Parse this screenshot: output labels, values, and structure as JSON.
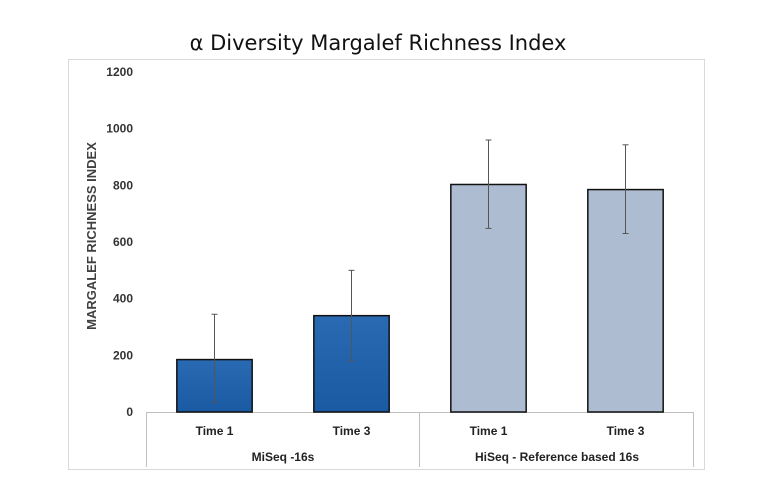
{
  "chart_data": {
    "type": "bar",
    "title": "α Diversity Margalef Richness Index",
    "xlabel": "",
    "ylabel": "MARGALEF RICHNESS INDEX",
    "ylim": [
      0,
      1200
    ],
    "yticks": [
      0,
      200,
      400,
      600,
      800,
      1000,
      1200
    ],
    "grid": false,
    "legend": "none",
    "groups": [
      {
        "name": "MiSeq -16s",
        "color": "#1F5FA8",
        "bars": [
          {
            "category": "Time 1",
            "value": 185,
            "error_low": 35,
            "error_high": 345
          },
          {
            "category": "Time 3",
            "value": 340,
            "error_low": 180,
            "error_high": 500
          }
        ]
      },
      {
        "name": "HiSeq - Reference based 16s",
        "color": "#ADBCD0",
        "bars": [
          {
            "category": "Time 1",
            "value": 803,
            "error_low": 648,
            "error_high": 960
          },
          {
            "category": "Time 3",
            "value": 785,
            "error_low": 630,
            "error_high": 943
          }
        ]
      }
    ]
  }
}
